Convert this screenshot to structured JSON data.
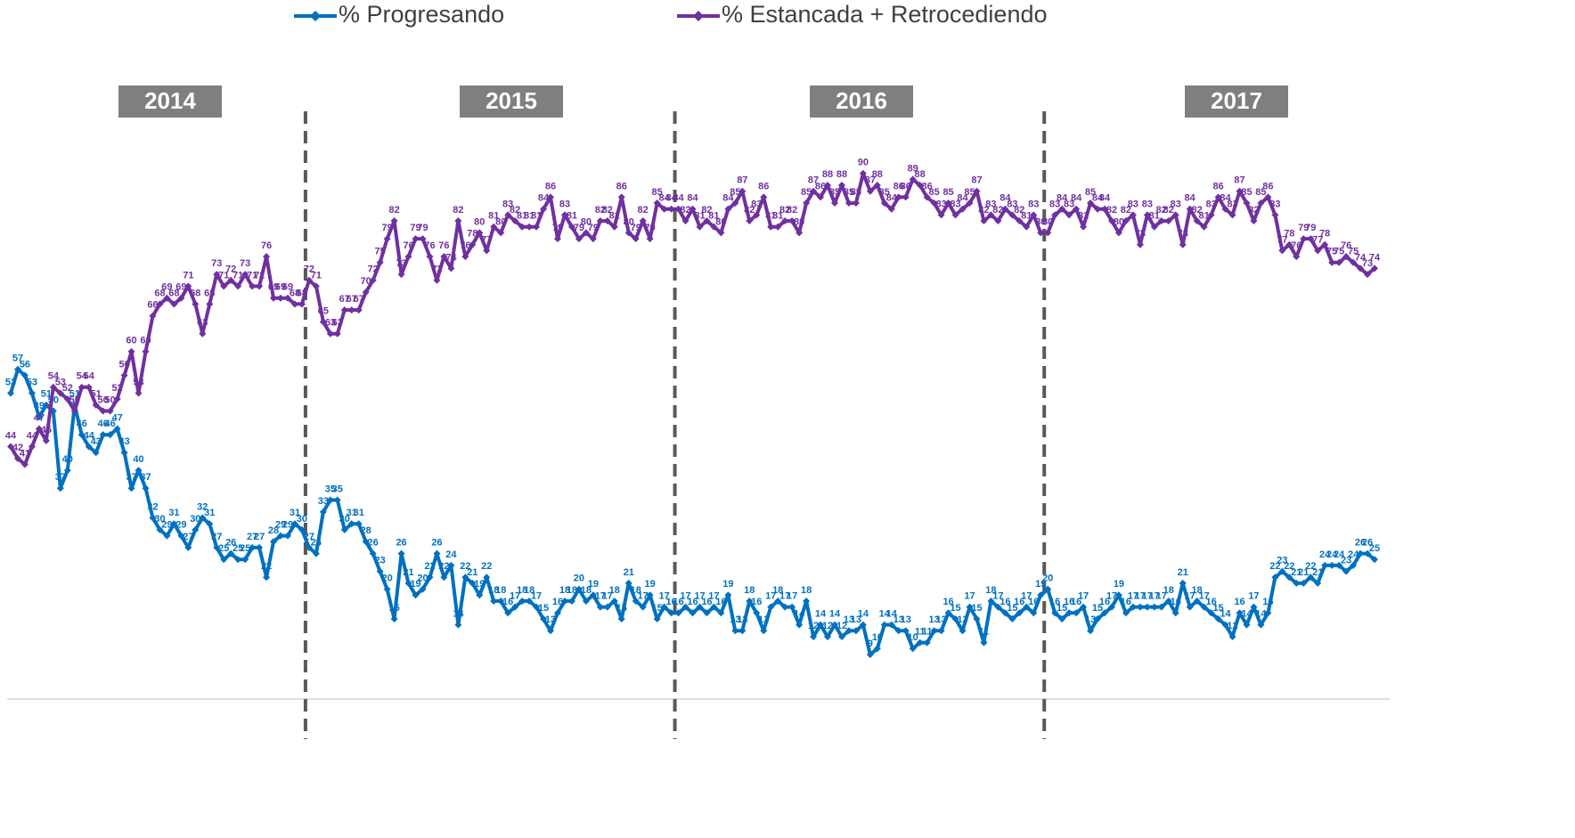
{
  "chart_data": {
    "type": "line",
    "year_labels": [
      "2014",
      "2015",
      "2016",
      "2017"
    ],
    "ylim": [
      0,
      100
    ],
    "series": [
      {
        "name": "% Progresando",
        "color": "#0070c0",
        "values": [
          53,
          57,
          56,
          53,
          49,
          51,
          50,
          37,
          40,
          51,
          46,
          44,
          43,
          46,
          46,
          47,
          43,
          37,
          40,
          37,
          32,
          30,
          29,
          31,
          29,
          27,
          30,
          32,
          31,
          27,
          25,
          26,
          25,
          25,
          27,
          27,
          22,
          28,
          29,
          29,
          31,
          30,
          27,
          26,
          33,
          35,
          35,
          30,
          31,
          31,
          28,
          26,
          23,
          20,
          15,
          26,
          21,
          19,
          20,
          22,
          26,
          22,
          24,
          14,
          22,
          21,
          19,
          22,
          18,
          18,
          16,
          17,
          18,
          18,
          17,
          15,
          13,
          16,
          18,
          18,
          20,
          18,
          19,
          17,
          17,
          18,
          15,
          21,
          18,
          17,
          19,
          15,
          17,
          16,
          16,
          17,
          16,
          17,
          16,
          17,
          16,
          19,
          13,
          13,
          18,
          16,
          13,
          17,
          18,
          17,
          17,
          14,
          18,
          12,
          14,
          12,
          14,
          12,
          13,
          13,
          14,
          9,
          10,
          14,
          14,
          13,
          13,
          10,
          11,
          11,
          13,
          13,
          16,
          15,
          13,
          17,
          15,
          11,
          18,
          17,
          16,
          15,
          16,
          17,
          16,
          19,
          20,
          16,
          15,
          16,
          16,
          17,
          13,
          15,
          16,
          17,
          19,
          16,
          17,
          17,
          17,
          17,
          17,
          18,
          16,
          21,
          17,
          18,
          17,
          16,
          15,
          14,
          12,
          16,
          14,
          17,
          14,
          16,
          22,
          23,
          22,
          21,
          21,
          22,
          21,
          24,
          24,
          24,
          23,
          24,
          26,
          26,
          25
        ]
      },
      {
        "name": "% Estancada + Retrocediendo",
        "color": "#7030a0",
        "values": [
          44,
          42,
          41,
          44,
          47,
          45,
          54,
          53,
          52,
          50,
          54,
          54,
          51,
          50,
          50,
          52,
          56,
          60,
          53,
          60,
          66,
          68,
          69,
          68,
          69,
          71,
          68,
          63,
          68,
          73,
          71,
          72,
          71,
          73,
          71,
          71,
          76,
          69,
          69,
          69,
          68,
          68,
          72,
          71,
          65,
          63,
          63,
          67,
          67,
          67,
          70,
          72,
          75,
          79,
          82,
          73,
          76,
          79,
          79,
          76,
          72,
          76,
          74,
          82,
          76,
          78,
          80,
          77,
          81,
          80,
          83,
          82,
          81,
          81,
          81,
          84,
          86,
          79,
          83,
          81,
          79,
          80,
          79,
          82,
          82,
          81,
          86,
          80,
          79,
          82,
          79,
          85,
          84,
          84,
          84,
          82,
          84,
          81,
          82,
          81,
          80,
          84,
          85,
          87,
          82,
          83,
          86,
          81,
          81,
          82,
          82,
          80,
          85,
          87,
          86,
          88,
          85,
          88,
          85,
          85,
          90,
          87,
          88,
          85,
          84,
          86,
          86,
          89,
          88,
          86,
          85,
          83,
          85,
          83,
          84,
          85,
          87,
          82,
          83,
          82,
          84,
          83,
          82,
          81,
          83,
          80,
          80,
          83,
          84,
          83,
          84,
          81,
          85,
          84,
          84,
          82,
          80,
          82,
          83,
          78,
          83,
          81,
          82,
          82,
          83,
          78,
          84,
          82,
          81,
          83,
          86,
          84,
          83,
          87,
          85,
          82,
          85,
          86,
          83,
          77,
          78,
          76,
          79,
          79,
          77,
          78,
          75,
          75,
          76,
          75,
          74,
          73,
          74
        ]
      }
    ]
  }
}
